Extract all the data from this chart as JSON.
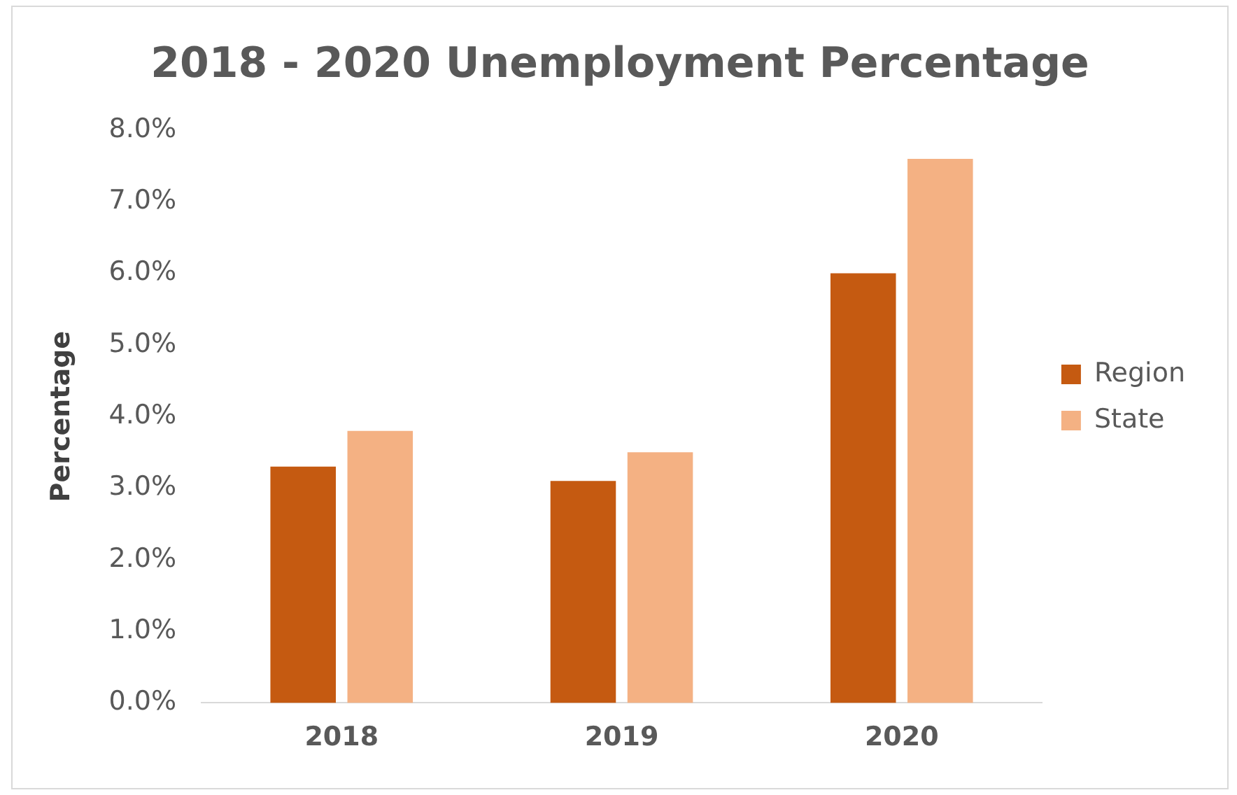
{
  "chart_data": {
    "type": "bar",
    "title": "2018 - 2020 Unemployment Percentage",
    "ylabel": "Percentage",
    "categories": [
      "2018",
      "2019",
      "2020"
    ],
    "series": [
      {
        "name": "Region",
        "color": "#c55a11",
        "values": [
          3.3,
          3.1,
          6.0
        ]
      },
      {
        "name": "State",
        "color": "#f4b183",
        "values": [
          3.8,
          3.5,
          7.6
        ]
      }
    ],
    "ylim": [
      0,
      8
    ],
    "yticks": [
      {
        "value": 0,
        "label": "0.0%"
      },
      {
        "value": 1,
        "label": "1.0%"
      },
      {
        "value": 2,
        "label": "2.0%"
      },
      {
        "value": 3,
        "label": "3.0%"
      },
      {
        "value": 4,
        "label": "4.0%"
      },
      {
        "value": 5,
        "label": "5.0%"
      },
      {
        "value": 6,
        "label": "6.0%"
      },
      {
        "value": 7,
        "label": "7.0%"
      },
      {
        "value": 8,
        "label": "8.0%"
      }
    ],
    "grid": false,
    "legend": "right"
  }
}
